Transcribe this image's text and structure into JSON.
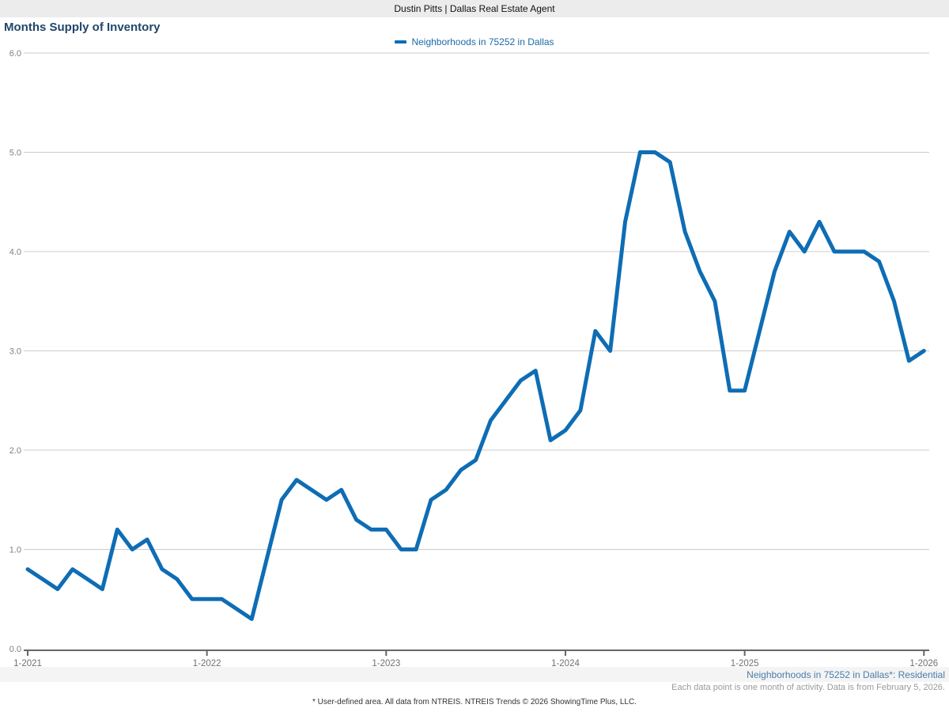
{
  "header": {
    "title": "Dustin Pitts | Dallas Real Estate Agent"
  },
  "chart_title": "Months Supply of Inventory",
  "legend": {
    "label": "Neighborhoods in 75252 in Dallas",
    "swatch_color": "#0e6db4"
  },
  "annotations": {
    "right_blue": "Neighborhoods in 75252 in Dallas*: Residential",
    "right_gray": "Each data point is one month of activity. Data is from February 5, 2026.",
    "footer": "* User-defined area. All data from NTREIS. NTREIS Trends © 2026 ShowingTime Plus, LLC."
  },
  "colors": {
    "line": "#0e6db4",
    "grid": "#cccccc",
    "axis": "#666666",
    "tick_text": "#808080",
    "title_text": "#21466b"
  },
  "chart_data": {
    "type": "line",
    "title": "Months Supply of Inventory",
    "grid": "horizontal",
    "legend_position": "top-center",
    "x_unit": "month",
    "points_per_year": 12,
    "x_start_label": "1-2021",
    "x_tick_labels": [
      "1-2021",
      "1-2022",
      "1-2023",
      "1-2024",
      "1-2025",
      "1-2026"
    ],
    "x_tick_month_indices": [
      0,
      12,
      24,
      36,
      48,
      60
    ],
    "y_ticks": [
      "0.0",
      "1.0",
      "2.0",
      "3.0",
      "4.0",
      "5.0",
      "6.0"
    ],
    "ylim": [
      0,
      6
    ],
    "series": [
      {
        "name": "Neighborhoods in 75252 in Dallas",
        "color": "#0e6db4",
        "values": [
          0.8,
          0.7,
          0.6,
          0.8,
          0.7,
          0.6,
          1.2,
          1.0,
          1.1,
          0.8,
          0.7,
          0.5,
          0.5,
          0.5,
          0.4,
          0.3,
          0.9,
          1.5,
          1.7,
          1.6,
          1.5,
          1.6,
          1.3,
          1.2,
          1.2,
          1.0,
          1.0,
          1.5,
          1.6,
          1.8,
          1.9,
          2.3,
          2.5,
          2.7,
          2.8,
          2.1,
          2.2,
          2.4,
          3.2,
          3.0,
          4.3,
          5.0,
          5.0,
          4.9,
          4.2,
          3.8,
          3.5,
          2.6,
          2.6,
          3.2,
          3.8,
          4.2,
          4.0,
          4.3,
          4.0,
          4.0,
          4.0,
          3.9,
          3.5,
          2.9,
          3.0
        ]
      }
    ]
  }
}
